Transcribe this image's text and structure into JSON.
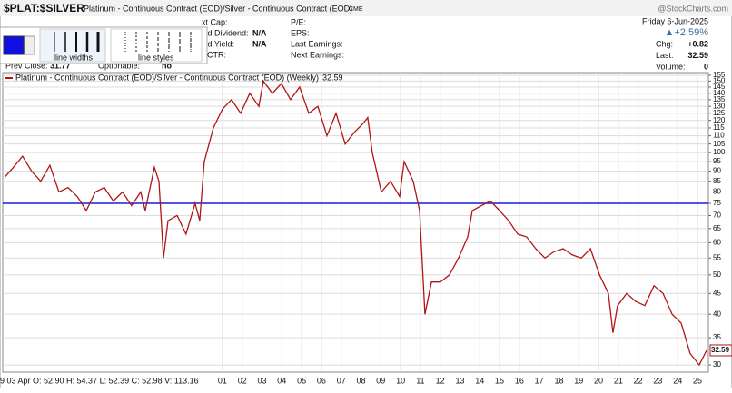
{
  "header": {
    "symbol": "$PLAT:$SILVER",
    "description": "Platinum - Continuous Contract (EOD)/Silver - Continuous Contract (EOD)",
    "exchange": "CME",
    "source": "@StockCharts.com",
    "date": "Friday  6-Jun-2025",
    "change_pct": "▲+2.59%",
    "quote": [
      {
        "label": "Chg:",
        "value": "+0.82"
      },
      {
        "label": "Last:",
        "value": "32.59"
      },
      {
        "label": "Volume:",
        "value": "0"
      }
    ],
    "info_a": [
      {
        "label": "xt Cap:",
        "value": ""
      },
      {
        "label": "wd Dividend:",
        "value": "N/A"
      },
      {
        "label": "wd Yield:",
        "value": "N/A"
      },
      {
        "label": "SCTR:",
        "value": ""
      }
    ],
    "info_b": [
      "P/E:",
      "EPS:",
      "Last Earnings:",
      "Next Earnings:"
    ],
    "prev_close_label": "Prev Close:",
    "prev_close": "31.77",
    "optionable_label": "Optionable:",
    "optionable": "no",
    "popup": {
      "widths": "line widths",
      "styles": "line styles"
    },
    "hover_info": "9 03 Apr  O: 52.90  H: 54.37  L: 52.39  C: 52.98  V: 113.16"
  },
  "chart_data": {
    "type": "line",
    "log_scale": true,
    "grid": true,
    "x": [
      1990.0,
      1990.44,
      1990.9,
      1991.36,
      1991.82,
      1992.28,
      1992.74,
      1993.2,
      1993.66,
      1994.12,
      1994.58,
      1995.03,
      1995.49,
      1995.95,
      1996.41,
      1996.87,
      1997.1,
      1997.56,
      1997.79,
      1998.02,
      1998.25,
      1998.71,
      1999.16,
      1999.62,
      1999.85,
      2000.08,
      2000.54,
      2001.0,
      2001.46,
      2001.92,
      2002.38,
      2002.84,
      2003.07,
      2003.52,
      2003.98,
      2004.44,
      2004.9,
      2005.36,
      2005.82,
      2006.28,
      2006.74,
      2007.2,
      2007.65,
      2008.11,
      2008.34,
      2008.57,
      2009.03,
      2009.49,
      2009.95,
      2010.18,
      2010.64,
      2010.96,
      2011.23,
      2011.56,
      2012.01,
      2012.47,
      2012.93,
      2013.39,
      2013.62,
      2014.08,
      2014.54,
      2015.0,
      2015.46,
      2015.92,
      2016.37,
      2016.83,
      2017.29,
      2017.75,
      2018.21,
      2018.67,
      2019.13,
      2019.59,
      2020.05,
      2020.5,
      2020.73,
      2020.96,
      2021.42,
      2021.88,
      2022.34,
      2022.8,
      2023.26,
      2023.72,
      2024.18,
      2024.63,
      2025.09,
      2025.46
    ],
    "series": [
      {
        "name": "Platinum - Continuous Contract (EOD)/Silver - Continuous Contract (EOD) (Weekly)",
        "color": "#b01515",
        "values": [
          87,
          92,
          98,
          90,
          85,
          93,
          80,
          82,
          78,
          72,
          80,
          82,
          76,
          80,
          74,
          80,
          72,
          92,
          85,
          55,
          68,
          70,
          63,
          75,
          68,
          95,
          115,
          128,
          135,
          125,
          140,
          130,
          150,
          140,
          148,
          135,
          145,
          125,
          130,
          110,
          125,
          105,
          112,
          118,
          122,
          100,
          80,
          85,
          78,
          95,
          85,
          72,
          40,
          48,
          48,
          50,
          55,
          62,
          72,
          74,
          76,
          72,
          68,
          63,
          62,
          58,
          55,
          57,
          58,
          56,
          55,
          58,
          50,
          45,
          36,
          42,
          45,
          43,
          42,
          47,
          45,
          40,
          38,
          32,
          30,
          32.59
        ]
      }
    ],
    "hline": {
      "value": 75,
      "color": "#1a1adb"
    },
    "xlim": [
      1989.9,
      2025.55
    ],
    "ylim": [
      28.8,
      157.4
    ],
    "xticks": [
      {
        "value": 2001,
        "label": "01"
      },
      {
        "value": 2002,
        "label": "02"
      },
      {
        "value": 2003,
        "label": "03"
      },
      {
        "value": 2004,
        "label": "04"
      },
      {
        "value": 2005,
        "label": "05"
      },
      {
        "value": 2006,
        "label": "06"
      },
      {
        "value": 2007,
        "label": "07"
      },
      {
        "value": 2008,
        "label": "08"
      },
      {
        "value": 2009,
        "label": "09"
      },
      {
        "value": 2010,
        "label": "10"
      },
      {
        "value": 2011,
        "label": "11"
      },
      {
        "value": 2012,
        "label": "12"
      },
      {
        "value": 2013,
        "label": "13"
      },
      {
        "value": 2014,
        "label": "14"
      },
      {
        "value": 2015,
        "label": "15"
      },
      {
        "value": 2016,
        "label": "16"
      },
      {
        "value": 2017,
        "label": "17"
      },
      {
        "value": 2018,
        "label": "18"
      },
      {
        "value": 2019,
        "label": "19"
      },
      {
        "value": 2020,
        "label": "20"
      },
      {
        "value": 2021,
        "label": "21"
      },
      {
        "value": 2022,
        "label": "22"
      },
      {
        "value": 2023,
        "label": "23"
      },
      {
        "value": 2024,
        "label": "24"
      },
      {
        "value": 2025,
        "label": "25"
      }
    ],
    "yticks": [
      30,
      35,
      40,
      45,
      50,
      55,
      60,
      65,
      70,
      75,
      80,
      85,
      90,
      95,
      100,
      105,
      110,
      115,
      120,
      125,
      130,
      135,
      140,
      145,
      150,
      155
    ]
  }
}
